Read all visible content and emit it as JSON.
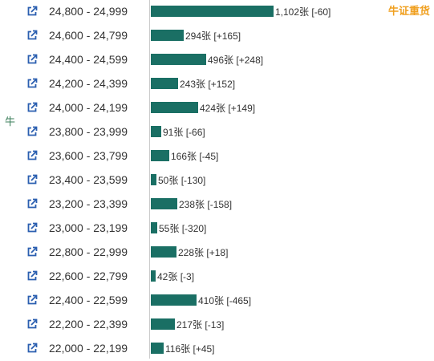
{
  "side_label": "牛",
  "corner_label": "牛证重货",
  "colors": {
    "bar": "#1a6f64",
    "side_label": "#3a7d5a",
    "corner_label": "#f0a020"
  },
  "icon": "external-link-icon",
  "chart_data": {
    "type": "bar",
    "orientation": "horizontal",
    "unit": "张",
    "categories": [
      "24,800 - 24,999",
      "24,600 - 24,799",
      "24,400 - 24,599",
      "24,200 - 24,399",
      "24,000 - 24,199",
      "23,800 - 23,999",
      "23,600 - 23,799",
      "23,400 - 23,599",
      "23,200 - 23,399",
      "23,000 - 23,199",
      "22,800 - 22,999",
      "22,600 - 22,799",
      "22,400 - 22,599",
      "22,200 - 22,399",
      "22,000 - 22,199"
    ],
    "values": [
      1102,
      294,
      496,
      243,
      424,
      91,
      166,
      50,
      238,
      55,
      228,
      42,
      410,
      217,
      116
    ],
    "value_labels": [
      "1,102张",
      "294张",
      "496张",
      "243张",
      "424张",
      "91张",
      "166张",
      "50张",
      "238张",
      "55张",
      "228张",
      "42张",
      "410张",
      "217张",
      "116张"
    ],
    "changes": [
      "[-60]",
      "[+165]",
      "[+248]",
      "[+152]",
      "[+149]",
      "[-66]",
      "[-45]",
      "[-130]",
      "[-158]",
      "[-320]",
      "[+18]",
      "[-3]",
      "[-465]",
      "[-13]",
      "[+45]"
    ],
    "change_values": [
      -60,
      165,
      248,
      152,
      149,
      -66,
      -45,
      -130,
      -158,
      -320,
      18,
      -3,
      -465,
      -13,
      45
    ]
  }
}
